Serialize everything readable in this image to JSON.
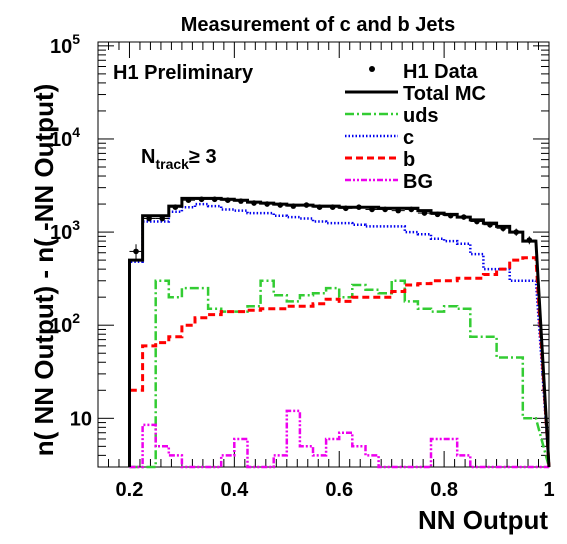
{
  "chart_data": {
    "type": "line",
    "title": "Measurement of c and b Jets",
    "xlabel": "NN Output",
    "ylabel": "n( NN Output) - n( -NN Output)",
    "xlim": [
      0.14,
      1.0
    ],
    "ylim": [
      3,
      110000
    ],
    "yscale": "log",
    "grid": false,
    "legend_position": "top-right",
    "x_ticks": [
      {
        "value": 0.2,
        "label": "0.2"
      },
      {
        "value": 0.4,
        "label": "0.4"
      },
      {
        "value": 0.6,
        "label": "0.6"
      },
      {
        "value": 0.8,
        "label": "0.8"
      },
      {
        "value": 1.0,
        "label": "1"
      }
    ],
    "y_ticks": [
      {
        "value": 10,
        "label": "10"
      },
      {
        "value": 100,
        "label": "10",
        "exp": "2"
      },
      {
        "value": 1000,
        "label": "10",
        "exp": "3"
      },
      {
        "value": 10000,
        "label": "10",
        "exp": "4"
      },
      {
        "value": 100000,
        "label": "10",
        "exp": "5"
      }
    ],
    "annotations": {
      "preliminary": "H1 Preliminary",
      "ntrack_main": "N",
      "ntrack_sub": "track",
      "ntrack_rel": "≥ 3"
    },
    "bin_edges": [
      0.2,
      0.225,
      0.25,
      0.275,
      0.3,
      0.325,
      0.35,
      0.375,
      0.4,
      0.425,
      0.45,
      0.475,
      0.5,
      0.525,
      0.55,
      0.575,
      0.6,
      0.625,
      0.65,
      0.675,
      0.7,
      0.725,
      0.75,
      0.775,
      0.8,
      0.825,
      0.85,
      0.875,
      0.9,
      0.925,
      0.95,
      0.975
    ],
    "series": [
      {
        "name": "H1 Data",
        "style": "points",
        "color": "#000000",
        "values": [
          620,
          1400,
          1400,
          1850,
          2200,
          2250,
          2250,
          2200,
          2150,
          2050,
          2000,
          1950,
          1900,
          1950,
          1850,
          1850,
          1800,
          1850,
          1750,
          1750,
          1700,
          1750,
          1600,
          1550,
          1500,
          1450,
          1300,
          1200,
          1100,
          1000,
          820
        ],
        "errors": [
          120,
          100,
          100,
          90,
          90,
          90,
          90,
          90,
          90,
          90,
          90,
          90,
          90,
          90,
          90,
          90,
          90,
          90,
          90,
          90,
          90,
          90,
          90,
          90,
          90,
          90,
          90,
          90,
          90,
          90,
          80
        ]
      },
      {
        "name": "Total MC",
        "style": "solid",
        "color": "#000000",
        "values": [
          500,
          1500,
          1500,
          1900,
          2300,
          2300,
          2300,
          2250,
          2200,
          2100,
          2050,
          2000,
          1950,
          1950,
          1900,
          1900,
          1850,
          1850,
          1850,
          1800,
          1800,
          1800,
          1700,
          1600,
          1550,
          1450,
          1350,
          1250,
          1150,
          1000,
          800
        ]
      },
      {
        "name": "uds",
        "style": "dashdot",
        "color": "#33cc33",
        "values": [
          3,
          3,
          300,
          200,
          250,
          250,
          150,
          140,
          140,
          160,
          300,
          210,
          180,
          210,
          220,
          250,
          200,
          270,
          240,
          220,
          300,
          180,
          150,
          140,
          160,
          150,
          75,
          75,
          45,
          45,
          10
        ]
      },
      {
        "name": "c",
        "style": "dotted",
        "color": "#0000ee",
        "values": [
          480,
          1300,
          1300,
          1650,
          1850,
          2000,
          1900,
          1750,
          1700,
          1600,
          1600,
          1500,
          1450,
          1400,
          1300,
          1250,
          1250,
          1200,
          1150,
          1150,
          1150,
          1000,
          950,
          850,
          800,
          750,
          580,
          400,
          400,
          300,
          300
        ]
      },
      {
        "name": "b",
        "style": "dashed",
        "color": "#ff0000",
        "values": [
          20,
          60,
          65,
          75,
          100,
          120,
          130,
          140,
          140,
          145,
          150,
          150,
          160,
          160,
          170,
          190,
          180,
          200,
          200,
          200,
          230,
          270,
          280,
          300,
          300,
          320,
          320,
          350,
          400,
          500,
          530
        ]
      },
      {
        "name": "BG",
        "style": "dashdotdot",
        "color": "#ee00ee",
        "values": [
          3,
          8.5,
          5,
          4,
          3,
          3,
          3,
          4,
          6,
          3,
          3,
          4,
          12,
          5,
          4,
          6,
          7,
          5,
          4,
          3,
          3,
          3,
          3,
          6,
          6,
          4,
          3,
          3,
          3,
          3,
          3
        ]
      }
    ]
  }
}
